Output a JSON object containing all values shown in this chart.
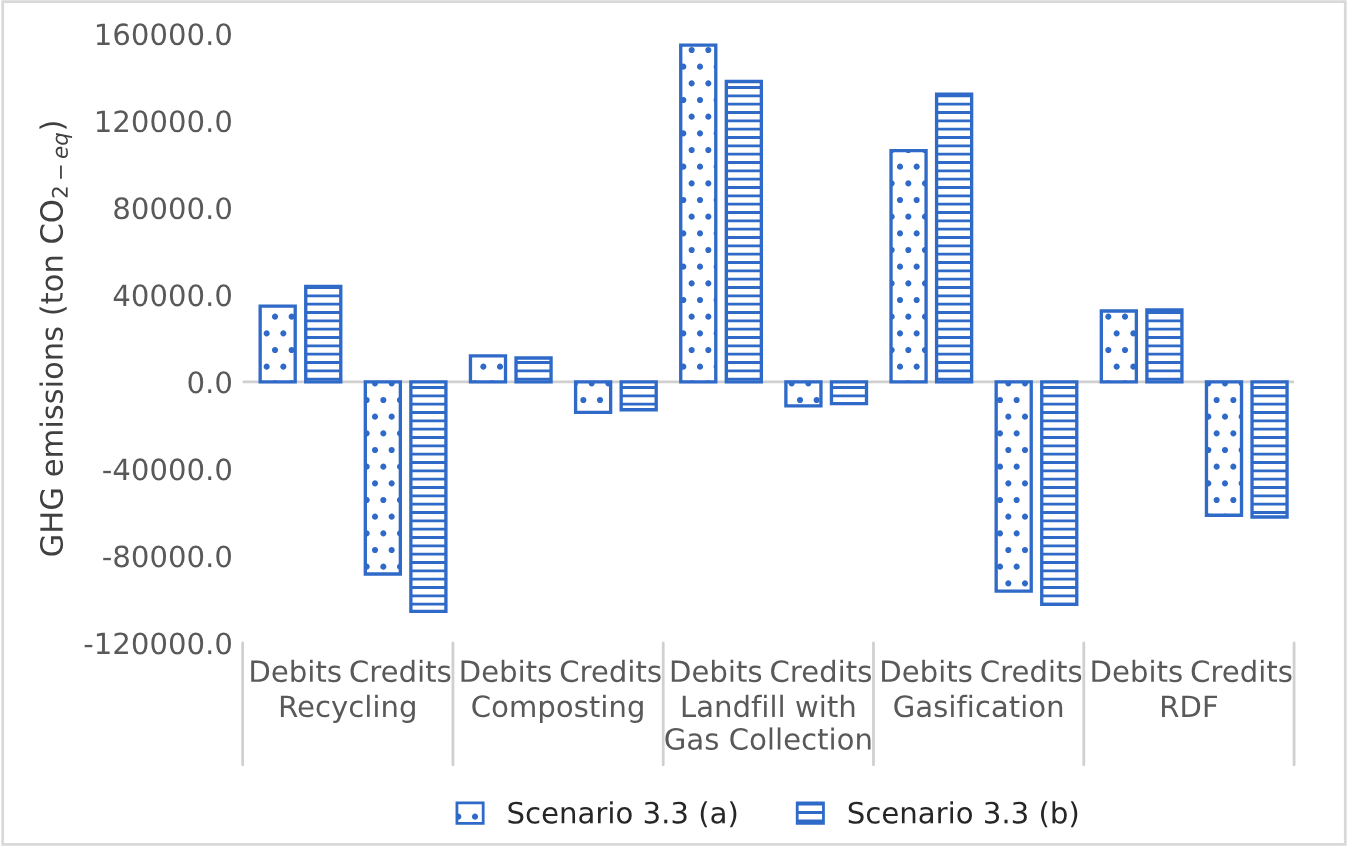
{
  "chart_data": {
    "type": "bar",
    "ylabel": "GHG emissions (ton CO$_{2−eq}$)",
    "categories": [
      "Debits",
      "Credits",
      "Debits",
      "Credits",
      "Debits",
      "Credits",
      "Debits",
      "Credits",
      "Debits",
      "Credits"
    ],
    "annotations": [
      "Recycling",
      "Composting",
      "Landfill with\nGas Collection",
      "Gasification",
      "RDF"
    ],
    "series": [
      {
        "name": "Scenario 3.3 (a)",
        "color": "#2f6ac8",
        "values": [
          34800,
          -88300,
          12000,
          -14000,
          154800,
          -11000,
          106300,
          -96200,
          32600,
          -61300
        ]
      },
      {
        "name": "Scenario 3.3 (b)",
        "color": "#2f6ac8",
        "values": [
          43900,
          -105500,
          11000,
          -12800,
          138100,
          -10000,
          132300,
          -102300,
          33100,
          -62100
        ]
      }
    ],
    "ylim": [
      -120000,
      160000
    ],
    "yticks": [
      {
        "value": -120000,
        "label": "-120000.0"
      },
      {
        "value": -80000,
        "label": "-80000.0"
      },
      {
        "value": -40000,
        "label": "-40000.0"
      },
      {
        "value": 0,
        "label": "0.0"
      },
      {
        "value": 40000,
        "label": "40000.0"
      },
      {
        "value": 80000,
        "label": "80000.0"
      },
      {
        "value": 120000,
        "label": "120000.0"
      },
      {
        "value": 160000,
        "label": "160000.0"
      }
    ],
    "ref_lines": [
      {
        "axis": "y",
        "value": 0,
        "color": "#d0d0d0"
      }
    ],
    "grid": false,
    "legend": "bottom"
  }
}
